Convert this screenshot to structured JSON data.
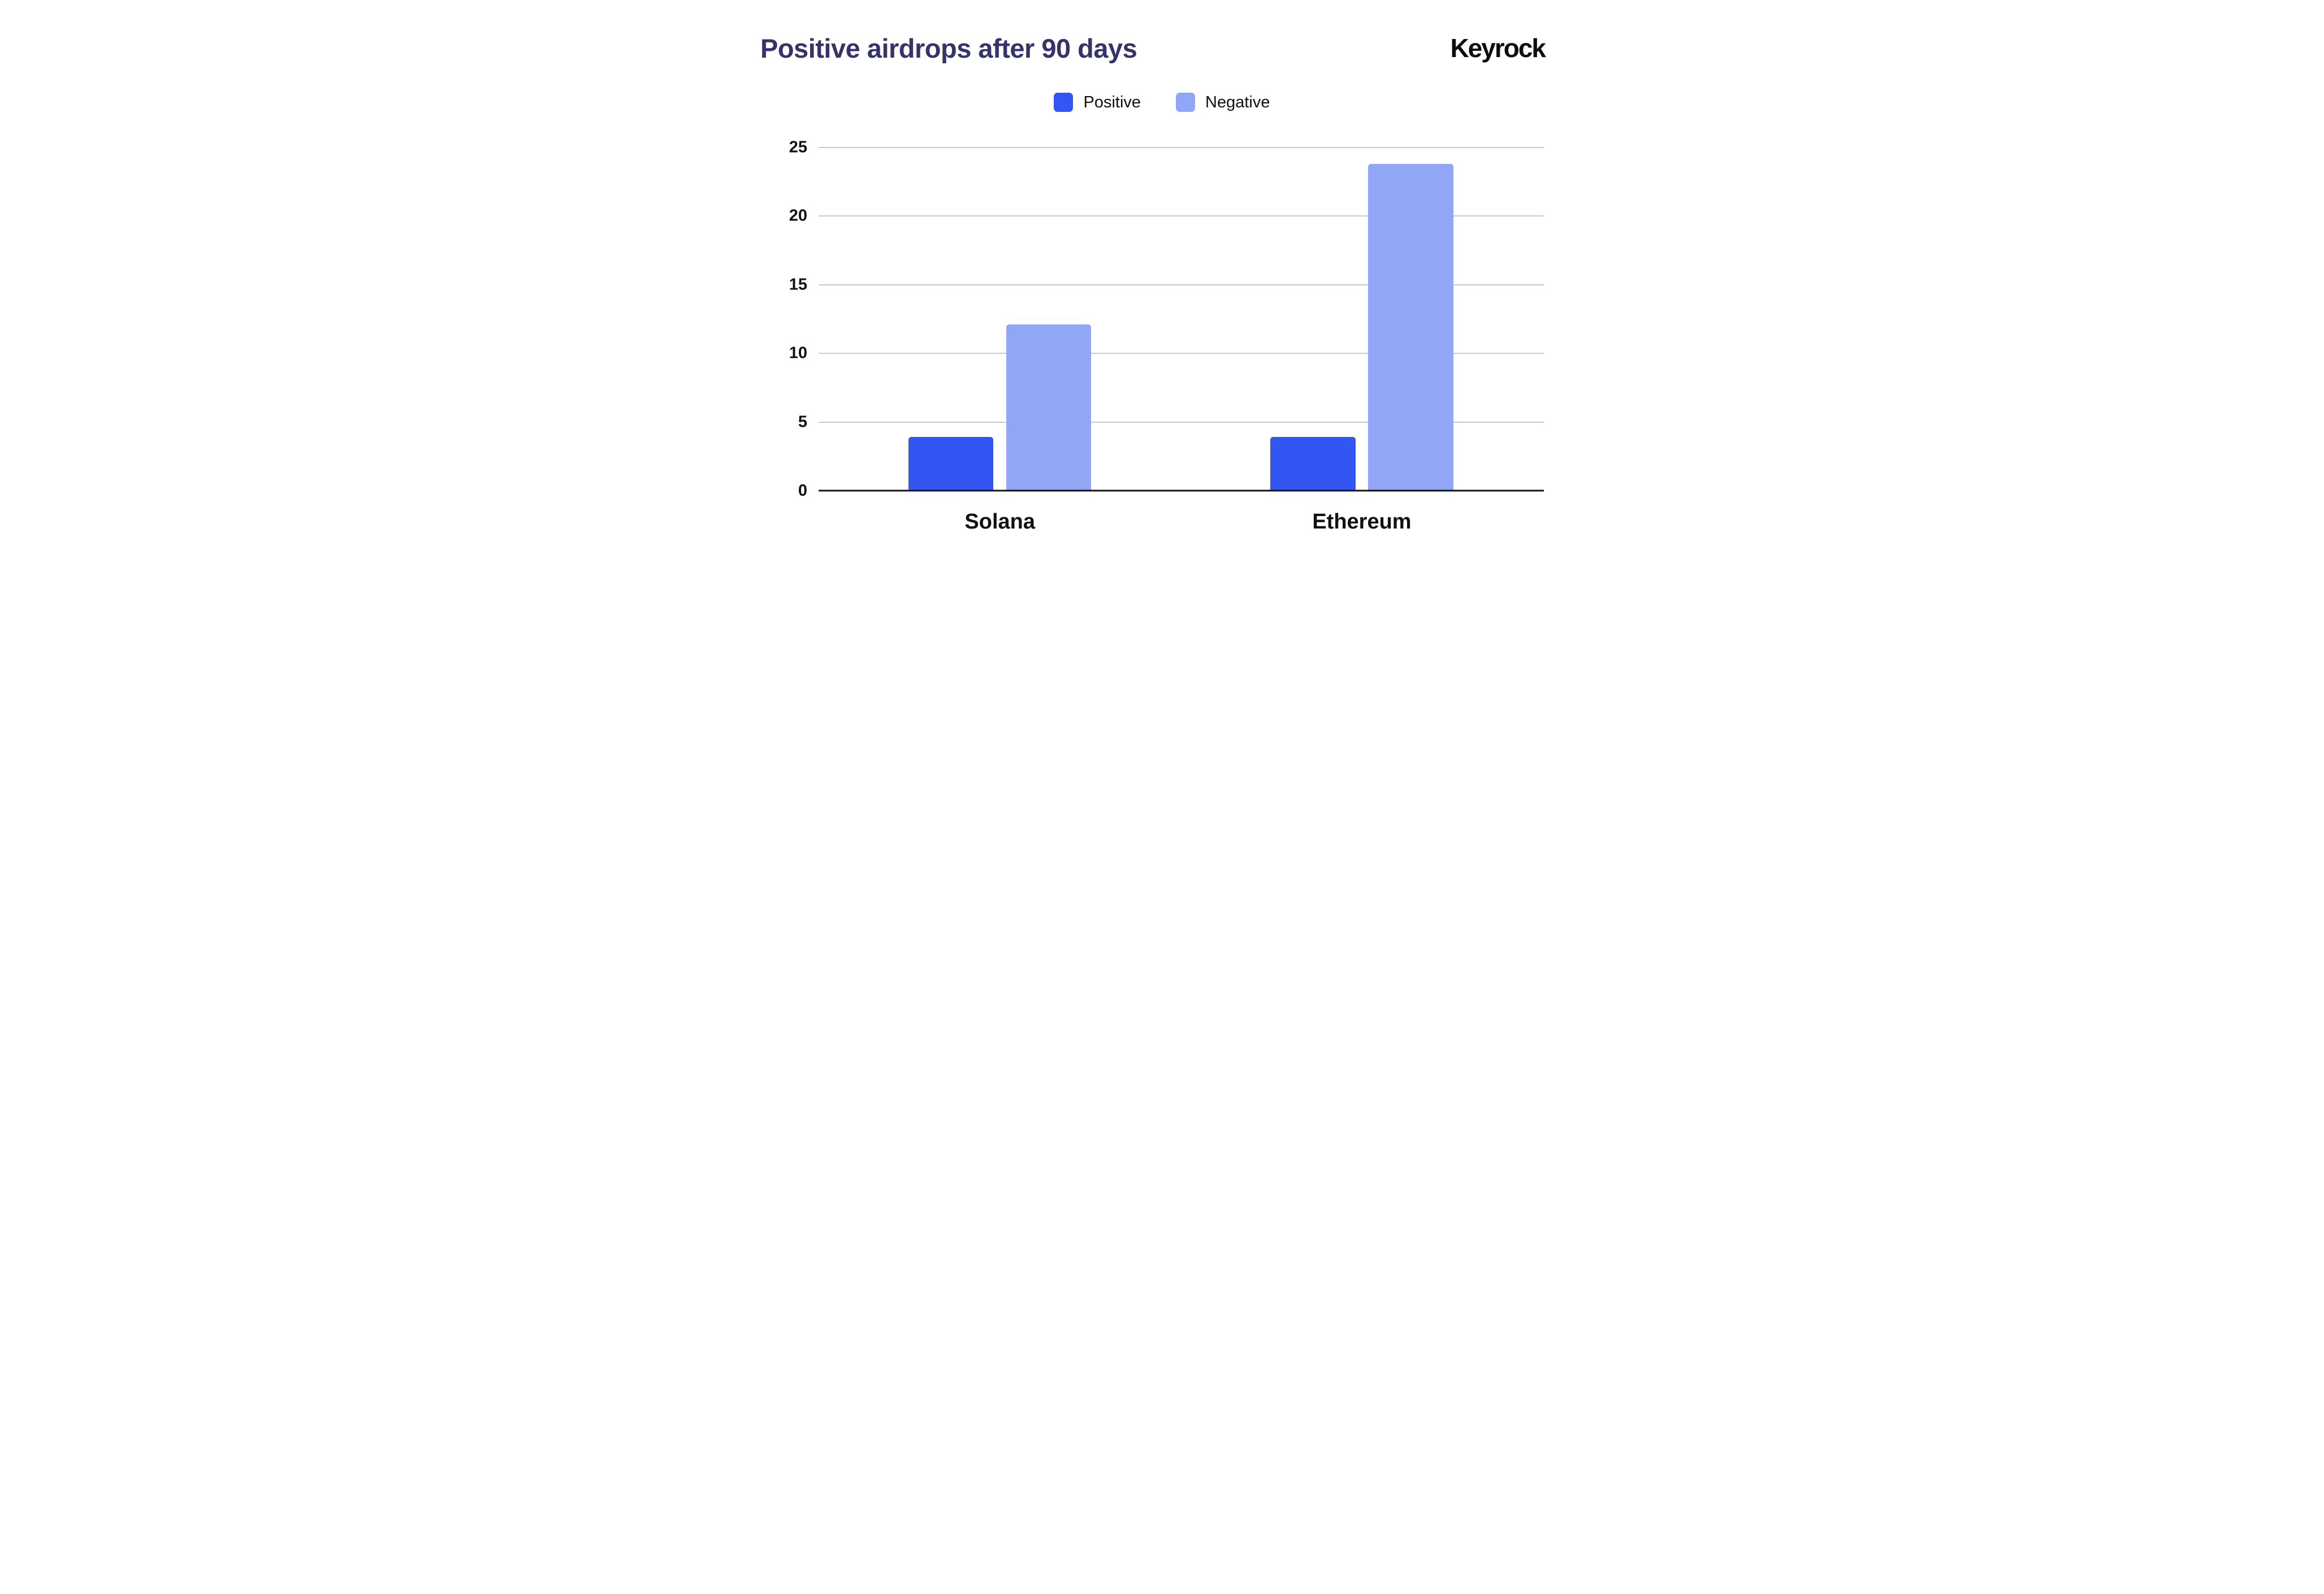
{
  "header": {
    "title": "Positive airdrops after 90 days",
    "brand": "Keyrock"
  },
  "legend": [
    {
      "label": "Positive",
      "color": "#3356F2"
    },
    {
      "label": "Negative",
      "color": "#91A6F4"
    }
  ],
  "chart_data": {
    "type": "bar",
    "title": "Positive airdrops after 90 days",
    "categories": [
      "Solana",
      "Ethereum"
    ],
    "series": [
      {
        "name": "Positive",
        "color": "#3356F2",
        "values": [
          3.9,
          3.9
        ]
      },
      {
        "name": "Negative",
        "color": "#91A6F4",
        "values": [
          12.1,
          23.8
        ]
      }
    ],
    "xlabel": "",
    "ylabel": "",
    "ylim": [
      0,
      25
    ],
    "yticks": [
      0,
      5,
      10,
      15,
      20,
      25
    ],
    "grid": true,
    "legend_position": "top-center"
  }
}
